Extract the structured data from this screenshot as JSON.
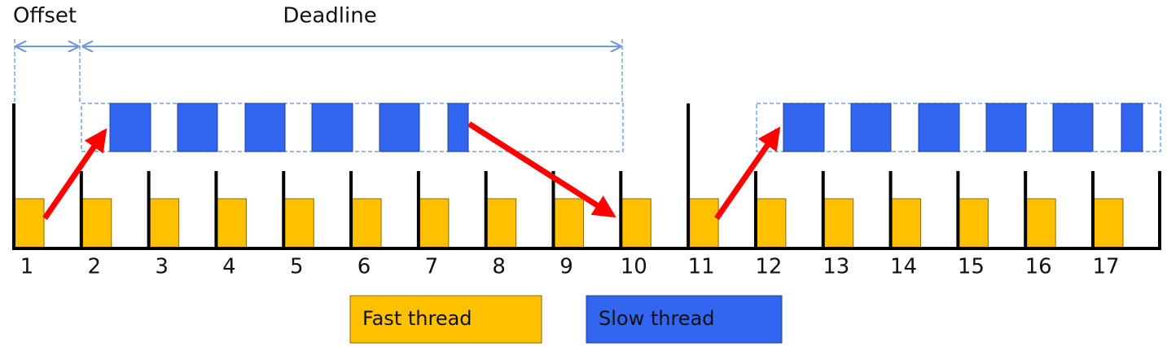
{
  "header": {
    "offset": "Offset",
    "deadline": "Deadline"
  },
  "timeline": {
    "ticks": [
      "1",
      "2",
      "3",
      "4",
      "5",
      "6",
      "7",
      "8",
      "9",
      "10",
      "11",
      "12",
      "13",
      "14",
      "15",
      "16",
      "17"
    ]
  },
  "legend": {
    "fast": "Fast thread",
    "slow": "Slow thread"
  }
}
